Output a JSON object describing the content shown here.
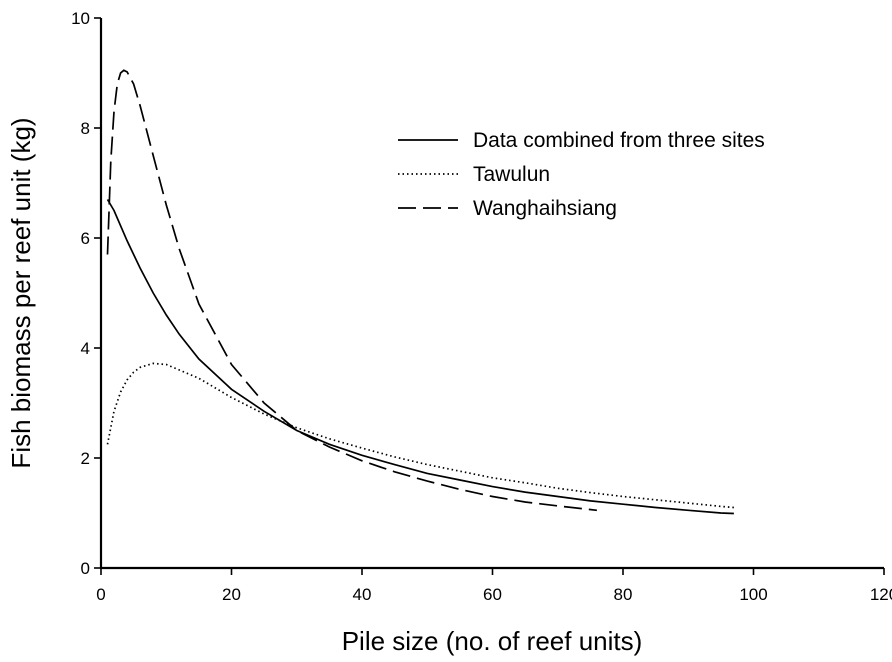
{
  "chart_data": {
    "type": "line",
    "xlabel": "Pile size (no. of reef units)",
    "ylabel": "Fish biomass per reef unit (kg)",
    "xlim": [
      0,
      120
    ],
    "ylim": [
      0,
      10
    ],
    "xticks": [
      0,
      20,
      40,
      60,
      80,
      100,
      120
    ],
    "yticks": [
      0,
      2,
      4,
      6,
      8,
      10
    ],
    "grid": false,
    "legend_position": "top-right",
    "series": [
      {
        "name": "Data combined from three sites",
        "style": "solid",
        "x": [
          1,
          2,
          4,
          6,
          8,
          10,
          12,
          15,
          20,
          25,
          30,
          35,
          40,
          45,
          50,
          55,
          60,
          65,
          70,
          75,
          80,
          85,
          90,
          95,
          97
        ],
        "y": [
          6.7,
          6.5,
          5.95,
          5.45,
          5.0,
          4.6,
          4.25,
          3.8,
          3.25,
          2.85,
          2.5,
          2.25,
          2.05,
          1.88,
          1.72,
          1.6,
          1.48,
          1.38,
          1.3,
          1.22,
          1.16,
          1.1,
          1.05,
          1.0,
          0.99
        ]
      },
      {
        "name": "Tawulun",
        "style": "dotted",
        "x": [
          1,
          2,
          3,
          4,
          5,
          6,
          8,
          10,
          12,
          15,
          20,
          25,
          30,
          35,
          40,
          45,
          50,
          55,
          60,
          65,
          70,
          75,
          80,
          85,
          90,
          95,
          97
        ],
        "y": [
          2.25,
          2.85,
          3.2,
          3.42,
          3.56,
          3.65,
          3.72,
          3.7,
          3.6,
          3.45,
          3.1,
          2.8,
          2.55,
          2.35,
          2.18,
          2.02,
          1.88,
          1.76,
          1.64,
          1.55,
          1.45,
          1.37,
          1.3,
          1.24,
          1.18,
          1.12,
          1.1
        ]
      },
      {
        "name": "Wanghaihsiang",
        "style": "dashed",
        "x": [
          1,
          1.5,
          2,
          2.5,
          3,
          3.5,
          4,
          5,
          6,
          8,
          10,
          12,
          15,
          20,
          25,
          30,
          35,
          40,
          45,
          50,
          55,
          60,
          65,
          70,
          76
        ],
        "y": [
          5.7,
          7.4,
          8.3,
          8.8,
          9.0,
          9.05,
          9.02,
          8.8,
          8.4,
          7.5,
          6.6,
          5.8,
          4.8,
          3.7,
          3.0,
          2.5,
          2.2,
          1.95,
          1.75,
          1.58,
          1.43,
          1.3,
          1.2,
          1.13,
          1.05
        ]
      }
    ]
  }
}
